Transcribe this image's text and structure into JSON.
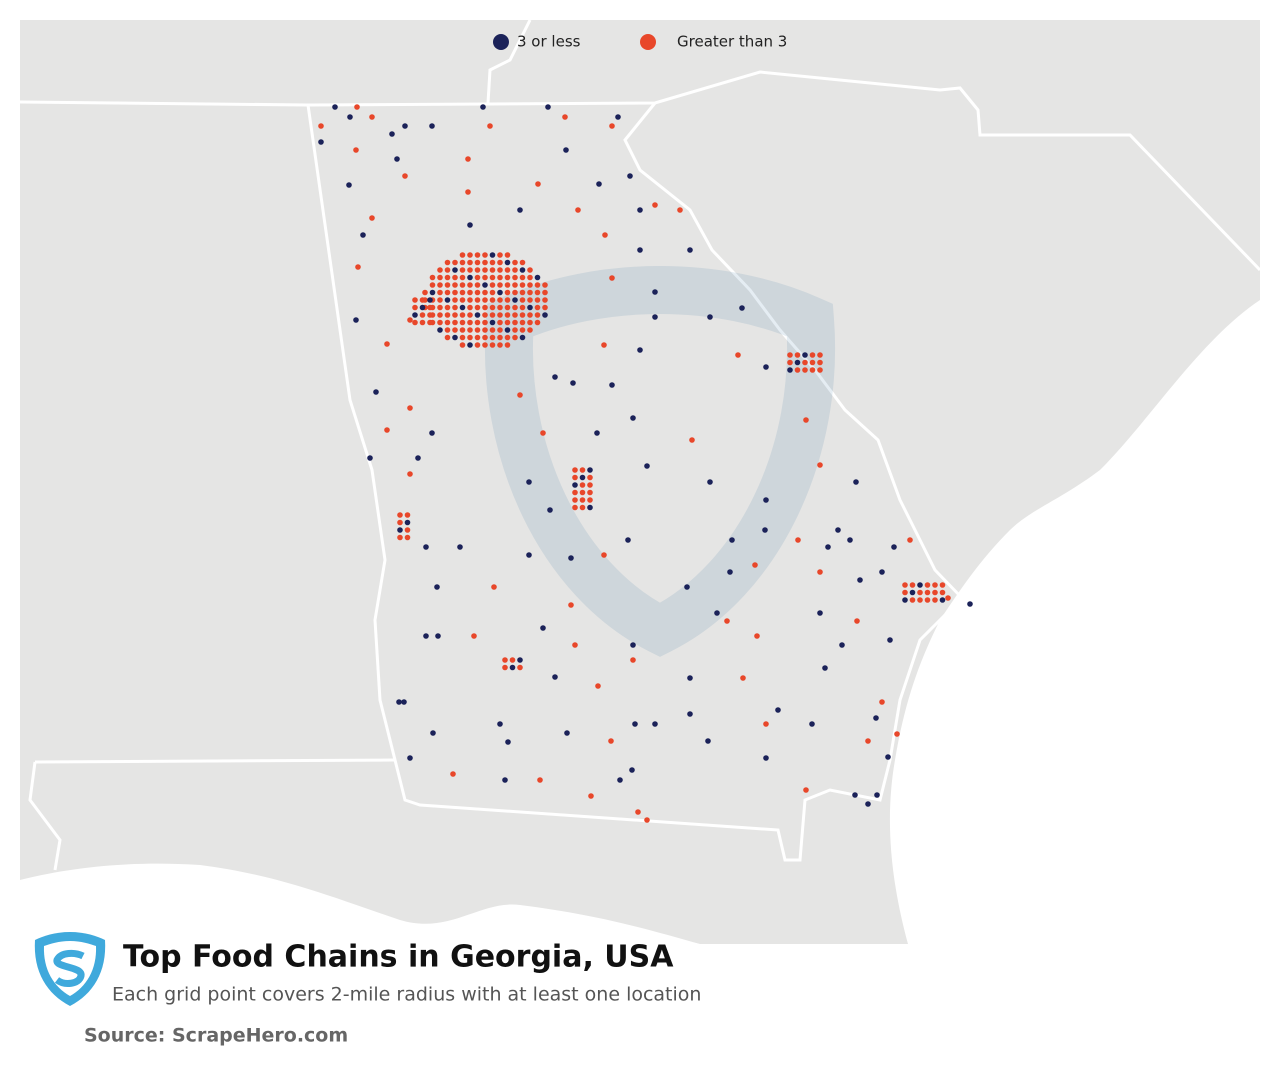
{
  "title": "Top Food Chains in Georgia, USA",
  "subtitle": "Each grid point covers 2-mile radius with at least one location",
  "source": "Source: ScrapeHero.com",
  "legend": [
    {
      "label": "3 or less",
      "color": "#1b2259"
    },
    {
      "label": "Greater than 3",
      "color": "#e8472a"
    }
  ]
}
